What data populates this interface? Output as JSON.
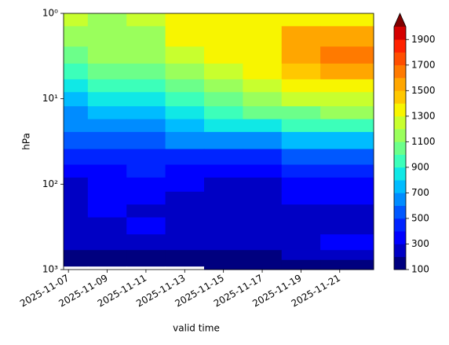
{
  "chart_data": {
    "type": "contourf",
    "x_label": "valid time",
    "y_label": "hPa",
    "x": [
      "2025-11-07",
      "2025-11-09",
      "2025-11-11",
      "2025-11-13",
      "2025-11-15",
      "2025-11-17",
      "2025-11-19",
      "2025-11-21"
    ],
    "y": [
      1,
      2,
      3,
      5,
      7,
      10,
      15,
      20,
      30,
      50,
      70,
      100,
      150,
      200,
      300,
      500,
      700,
      850,
      1000
    ],
    "z": [
      [
        1250,
        1150,
        1250,
        1350,
        1350,
        1350,
        1350,
        1350
      ],
      [
        1150,
        1150,
        1150,
        1350,
        1350,
        1350,
        1550,
        1550
      ],
      [
        1050,
        1150,
        1150,
        1250,
        1350,
        1350,
        1550,
        1650
      ],
      [
        950,
        1050,
        1050,
        1150,
        1250,
        1350,
        1450,
        1550
      ],
      [
        850,
        950,
        950,
        1050,
        1150,
        1250,
        1350,
        1350
      ],
      [
        750,
        850,
        850,
        950,
        1050,
        1150,
        1250,
        1250
      ],
      [
        650,
        750,
        750,
        850,
        950,
        1050,
        1050,
        1150
      ],
      [
        650,
        650,
        650,
        750,
        850,
        850,
        950,
        950
      ],
      [
        550,
        550,
        550,
        650,
        650,
        650,
        750,
        750
      ],
      [
        450,
        450,
        450,
        450,
        450,
        450,
        550,
        550
      ],
      [
        350,
        350,
        450,
        350,
        350,
        350,
        450,
        450
      ],
      [
        250,
        350,
        350,
        350,
        250,
        250,
        350,
        350
      ],
      [
        250,
        350,
        350,
        250,
        250,
        250,
        350,
        350
      ],
      [
        250,
        350,
        250,
        250,
        250,
        250,
        250,
        250
      ],
      [
        250,
        250,
        350,
        250,
        250,
        250,
        250,
        250
      ],
      [
        250,
        250,
        250,
        250,
        250,
        250,
        250,
        350
      ],
      [
        150,
        150,
        150,
        150,
        150,
        150,
        250,
        250
      ],
      [
        150,
        150,
        150,
        150,
        150,
        150,
        150,
        150
      ],
      [
        50,
        50,
        50,
        50,
        150,
        150,
        150,
        150
      ]
    ],
    "xlim": [
      "2025-11-06T18:00",
      "2025-11-22T18:00"
    ],
    "xticks": [
      "2025-11-07",
      "2025-11-09",
      "2025-11-11",
      "2025-11-13",
      "2025-11-15",
      "2025-11-17",
      "2025-11-19",
      "2025-11-21"
    ],
    "ylim": [
      1000,
      1
    ],
    "log_y": true,
    "y_inverted": true,
    "yticks": [
      {
        "value": 1,
        "label": "10⁰"
      },
      {
        "value": 10,
        "label": "10¹"
      },
      {
        "value": 100,
        "label": "10²"
      },
      {
        "value": 1000,
        "label": "10³"
      }
    ],
    "levels": [
      100,
      200,
      300,
      400,
      500,
      600,
      700,
      800,
      900,
      1000,
      1100,
      1200,
      1300,
      1400,
      1500,
      1600,
      1700,
      1800,
      1900,
      2000
    ],
    "colors": [
      "#00007f",
      "#0000c4",
      "#0000ff",
      "#0024ff",
      "#0058ff",
      "#008cff",
      "#00bcff",
      "#10e8e6",
      "#3cffba",
      "#6cff8a",
      "#9aff5c",
      "#c8ff2e",
      "#f8f500",
      "#ffc800",
      "#ffa600",
      "#ff7a00",
      "#ff4e00",
      "#ff2200",
      "#d40000"
    ],
    "extend_color": "#7f0000",
    "colorbar_ticks": [
      100,
      300,
      500,
      700,
      900,
      1100,
      1300,
      1500,
      1700,
      1900
    ]
  }
}
